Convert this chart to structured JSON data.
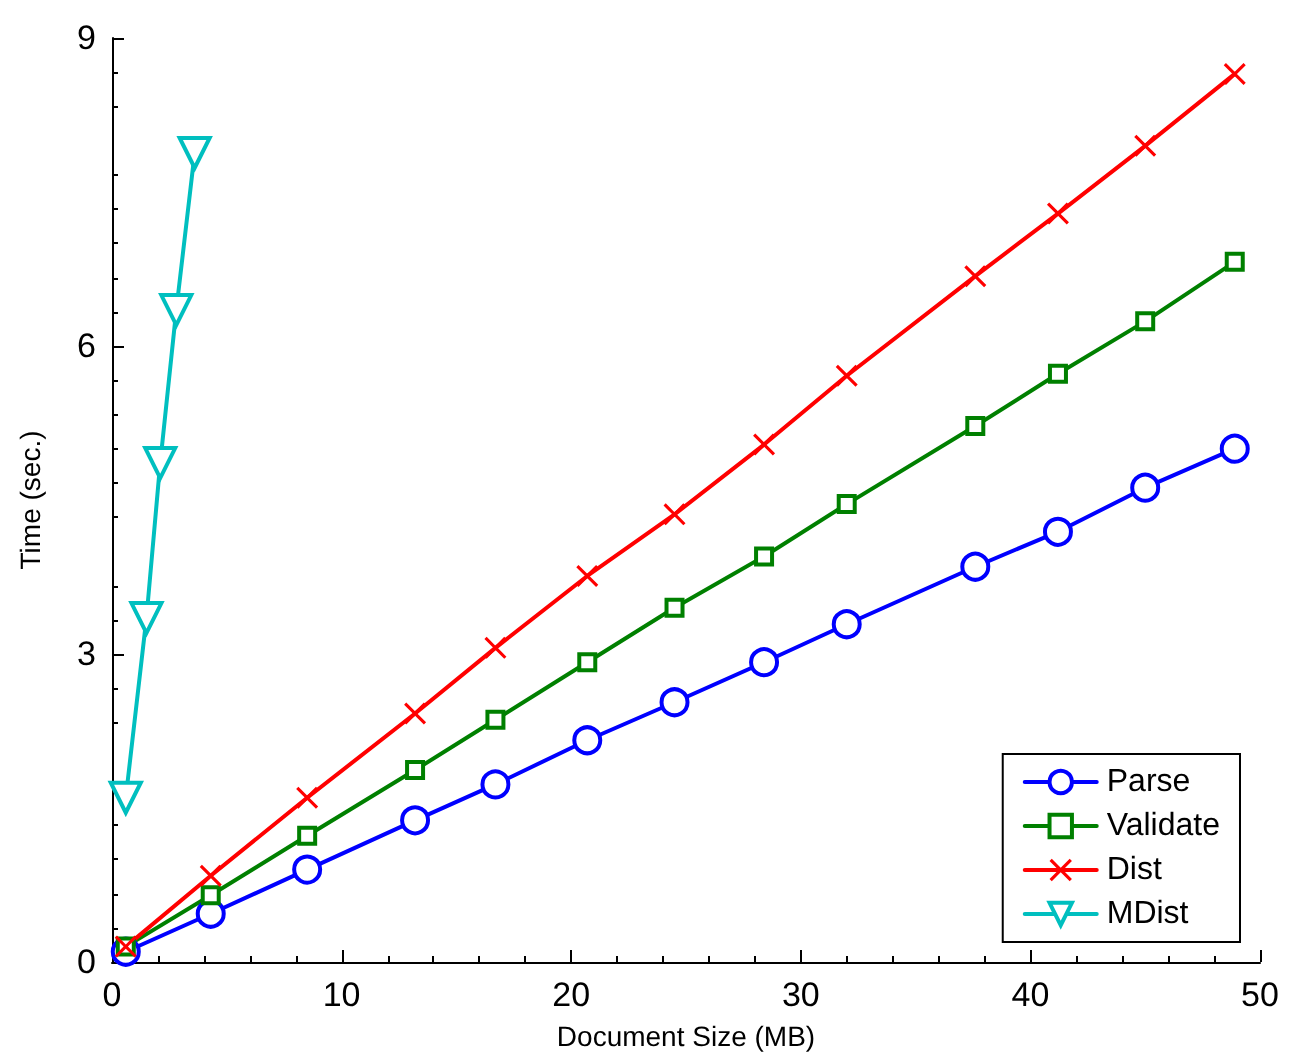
{
  "chart_data": {
    "type": "line",
    "xlabel": "Document Size (MB)",
    "ylabel": "Time (sec.)",
    "xlim": [
      0,
      50
    ],
    "xticks": [
      0,
      10,
      20,
      30,
      40,
      50
    ],
    "ylim": [
      0,
      9
    ],
    "yticks": [
      0,
      3,
      6,
      9
    ],
    "grid": false,
    "legend": "bottom right",
    "line_style": "solid",
    "x": [
      0.6,
      4.3,
      8.5,
      13.2,
      16.7,
      20.7,
      24.5,
      28.4,
      32.0,
      37.6,
      41.2,
      45.0,
      48.9
    ],
    "series": [
      {
        "name": "Parse",
        "color": "#0000ff",
        "marker": "circle",
        "values": [
          0.1,
          0.47,
          0.9,
          1.38,
          1.73,
          2.16,
          2.53,
          2.92,
          3.29,
          3.85,
          4.19,
          4.62,
          5.0
        ]
      },
      {
        "name": "Validate",
        "color": "#008000",
        "marker": "square",
        "values": [
          0.15,
          0.65,
          1.23,
          1.87,
          2.36,
          2.92,
          3.45,
          3.95,
          4.46,
          5.22,
          5.73,
          6.24,
          6.82
        ]
      },
      {
        "name": "Dist",
        "color": "#ff0000",
        "marker": "cross",
        "values": [
          0.15,
          0.84,
          1.6,
          2.42,
          3.06,
          3.76,
          4.36,
          5.04,
          5.71,
          6.68,
          7.29,
          7.95,
          8.65
        ]
      },
      {
        "name": "MDist",
        "color": "#00bfbf",
        "marker": "triangle",
        "x": [
          0.6,
          1.5,
          2.1,
          2.8,
          3.6
        ],
        "values": [
          1.6,
          3.35,
          4.86,
          6.35,
          7.88
        ]
      }
    ]
  }
}
